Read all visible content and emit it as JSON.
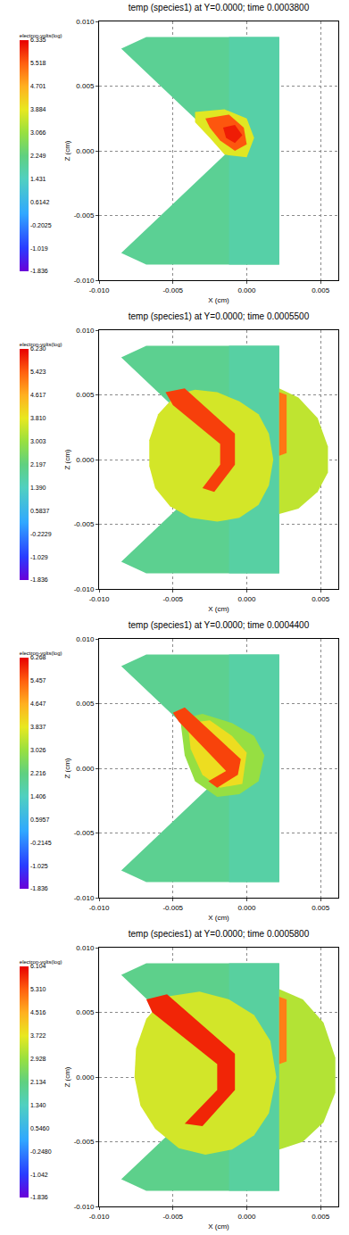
{
  "chart_data": [
    {
      "type": "polygon",
      "title": "temp (species1) at Y=0.0000; time 0.0003800",
      "xlabel": "X (cm)",
      "ylabel": "Z (cm)",
      "grid": true,
      "xlim": [
        -0.01,
        0.0062
      ],
      "ylim": [
        -0.01,
        0.01
      ],
      "xticks": [
        {
          "value": -0.01,
          "label": "-0.010"
        },
        {
          "value": -0.005,
          "label": "-0.005"
        },
        {
          "value": 0,
          "label": "0.000"
        },
        {
          "value": 0.005,
          "label": "0.005"
        }
      ],
      "yticks": [
        {
          "value": -0.01,
          "label": "-0.010"
        },
        {
          "value": -0.005,
          "label": "-0.005"
        },
        {
          "value": 0,
          "label": "0.000"
        },
        {
          "value": 0.005,
          "label": "0.005"
        },
        {
          "value": 0.01,
          "label": "0.010"
        }
      ],
      "colorbar": {
        "title": "electron-volts(log)",
        "range": [
          -1.836,
          6.335
        ],
        "ticks": [
          -1.836,
          -1.019,
          -0.2025,
          0.6142,
          1.431,
          2.249,
          3.066,
          3.884,
          4.701,
          5.518,
          6.335
        ]
      },
      "regions": [
        {
          "x": [
            -0.0068,
            0.0022,
            0.0022,
            -0.0068,
            -0.0085,
            -0.0012,
            -0.0085
          ],
          "y": [
            0.0088,
            0.0088,
            -0.0088,
            -0.0088,
            -0.0079,
            0.0,
            0.0079
          ],
          "value": 2.0
        },
        {
          "x": [
            -0.0012,
            0.0022,
            0.0022,
            -0.0012
          ],
          "y": [
            0.0088,
            0.0088,
            -0.0088,
            -0.0088
          ],
          "value": 1.75
        },
        {
          "x": [
            -0.0035,
            -0.0015,
            0.0,
            0.0005,
            0.0,
            -0.0015,
            -0.0025,
            -0.0035
          ],
          "y": [
            0.003,
            0.0032,
            0.0025,
            0.001,
            -0.0005,
            -0.0003,
            0.001,
            0.0022
          ],
          "value": 3.8
        },
        {
          "x": [
            -0.0028,
            -0.0012,
            -0.0002,
            0.0,
            -0.0008,
            -0.0018,
            -0.0025
          ],
          "y": [
            0.0025,
            0.0028,
            0.0018,
            0.0005,
            0.0,
            0.0008,
            0.0018
          ],
          "value": 5.6
        },
        {
          "x": [
            -0.0016,
            -0.0008,
            -0.0003,
            -0.0008,
            -0.0014
          ],
          "y": [
            0.0018,
            0.002,
            0.0012,
            0.0006,
            0.001
          ],
          "value": 6.1
        }
      ]
    },
    {
      "type": "polygon",
      "title": "temp (species1) at Y=0.0000; time 0.0005500",
      "xlabel": "X (cm)",
      "ylabel": "Z (cm)",
      "grid": true,
      "xlim": [
        -0.01,
        0.0062
      ],
      "ylim": [
        -0.01,
        0.01
      ],
      "xticks": [
        {
          "value": -0.01,
          "label": "-0.010"
        },
        {
          "value": -0.005,
          "label": "-0.005"
        },
        {
          "value": 0,
          "label": "0.000"
        },
        {
          "value": 0.005,
          "label": "0.005"
        }
      ],
      "yticks": [
        {
          "value": -0.01,
          "label": "-0.010"
        },
        {
          "value": -0.005,
          "label": "-0.005"
        },
        {
          "value": 0,
          "label": "0.000"
        },
        {
          "value": 0.005,
          "label": "0.005"
        },
        {
          "value": 0.01,
          "label": "0.010"
        }
      ],
      "colorbar": {
        "title": "electron-volts(log)",
        "range": [
          -1.836,
          6.23
        ],
        "ticks": [
          -1.836,
          -1.029,
          -0.2229,
          0.5837,
          {
            "value": 1.39,
            "label": "1.390"
          },
          2.197,
          3.003,
          {
            "value": 3.81,
            "label": "3.810"
          },
          4.617,
          5.423,
          {
            "value": 6.23,
            "label": "6.230"
          }
        ]
      },
      "regions": [
        {
          "x": [
            -0.0068,
            0.0022,
            0.0022,
            -0.0068,
            -0.0085,
            -0.0012,
            -0.0085
          ],
          "y": [
            0.0088,
            0.0088,
            -0.0088,
            -0.0088,
            -0.0079,
            0.0,
            0.0079
          ],
          "value": 2.0
        },
        {
          "x": [
            -0.0012,
            0.0022,
            0.0022,
            -0.0012
          ],
          "y": [
            0.0088,
            0.0088,
            -0.0088,
            -0.0088
          ],
          "value": 1.75
        },
        {
          "x": [
            -0.0048,
            -0.006,
            -0.0066,
            -0.0066,
            -0.0062,
            -0.0052,
            -0.0038,
            -0.002,
            -0.0005,
            0.0008,
            0.0015,
            0.0018,
            0.0015,
            0.0008,
            -0.0005,
            -0.002,
            -0.0035
          ],
          "y": [
            0.005,
            0.0035,
            0.0015,
            -0.0005,
            -0.0022,
            -0.0036,
            -0.0045,
            -0.0048,
            -0.0045,
            -0.0035,
            -0.002,
            0.0,
            0.002,
            0.0035,
            0.0045,
            0.0052,
            0.0054
          ],
          "value": 3.6
        },
        {
          "x": [
            0.0022,
            0.0035,
            0.0048,
            0.0055,
            0.0055,
            0.0048,
            0.0035,
            0.0022
          ],
          "y": [
            0.0055,
            0.0048,
            0.0032,
            0.001,
            -0.001,
            -0.0025,
            -0.0038,
            -0.0042
          ],
          "value": 3.4
        },
        {
          "x": [
            -0.0055,
            -0.0042,
            -0.0008,
            -0.0008,
            -0.0022,
            -0.003,
            -0.0018,
            -0.0018,
            -0.005
          ],
          "y": [
            0.0052,
            0.0055,
            0.002,
            -0.0004,
            -0.0025,
            -0.0022,
            -0.0004,
            0.0012,
            0.0042
          ],
          "value": 5.7
        },
        {
          "x": [
            0.0022,
            0.0027,
            0.0027,
            0.0022
          ],
          "y": [
            0.0052,
            0.005,
            0.0005,
            0.0003
          ],
          "value": 5.2
        }
      ]
    },
    {
      "type": "polygon",
      "title": "temp (species1) at Y=0.0000; time 0.0004400",
      "xlabel": "X (cm)",
      "ylabel": "Z (cm)",
      "grid": true,
      "xlim": [
        -0.01,
        0.0062
      ],
      "ylim": [
        -0.01,
        0.01
      ],
      "xticks": [
        {
          "value": -0.01,
          "label": "-0.010"
        },
        {
          "value": -0.005,
          "label": "-0.005"
        },
        {
          "value": 0,
          "label": "0.000"
        },
        {
          "value": 0.005,
          "label": "0.005"
        }
      ],
      "yticks": [
        {
          "value": -0.01,
          "label": "-0.010"
        },
        {
          "value": -0.005,
          "label": "-0.005"
        },
        {
          "value": 0,
          "label": "0.000"
        },
        {
          "value": 0.005,
          "label": "0.005"
        },
        {
          "value": 0.01,
          "label": "0.010"
        }
      ],
      "colorbar": {
        "title": "electron-volts(log)",
        "range": [
          -1.836,
          6.268
        ],
        "ticks": [
          -1.836,
          -1.025,
          -0.2145,
          0.5957,
          1.406,
          2.216,
          3.026,
          3.837,
          4.647,
          5.457,
          6.268
        ]
      },
      "regions": [
        {
          "x": [
            -0.0068,
            0.0022,
            0.0022,
            -0.0068,
            -0.0085,
            -0.0012,
            -0.0085
          ],
          "y": [
            0.0088,
            0.0088,
            -0.0088,
            -0.0088,
            -0.0079,
            0.0,
            0.0079
          ],
          "value": 2.0
        },
        {
          "x": [
            -0.0012,
            0.0022,
            0.0022,
            -0.0012
          ],
          "y": [
            0.0088,
            0.0088,
            -0.0088,
            -0.0088
          ],
          "value": 1.75
        },
        {
          "x": [
            -0.0045,
            -0.003,
            -0.001,
            0.0005,
            0.0012,
            0.0008,
            -0.0005,
            -0.002,
            -0.0035,
            -0.0042
          ],
          "y": [
            0.0038,
            0.0042,
            0.0035,
            0.0025,
            0.001,
            -0.001,
            -0.002,
            -0.0022,
            -0.001,
            0.001
          ],
          "value": 3.0
        },
        {
          "x": [
            -0.004,
            -0.0025,
            -0.001,
            0.0,
            -0.0003,
            -0.0018,
            -0.003,
            -0.0038
          ],
          "y": [
            0.0035,
            0.0037,
            0.0025,
            0.0012,
            -0.0012,
            -0.0015,
            -0.0005,
            0.0015
          ],
          "value": 4.0
        },
        {
          "x": [
            -0.005,
            -0.0042,
            -0.0004,
            -0.0006,
            -0.002,
            -0.0026,
            -0.0014,
            -0.0046
          ],
          "y": [
            0.0043,
            0.0047,
            0.0007,
            -0.0005,
            -0.0015,
            -0.001,
            -0.0002,
            0.0036
          ],
          "value": 5.7
        }
      ]
    },
    {
      "type": "polygon",
      "title": "temp (species1) at Y=0.0000; time 0.0005800",
      "xlabel": "X (cm)",
      "ylabel": "Z (cm)",
      "grid": true,
      "xlim": [
        -0.01,
        0.0062
      ],
      "ylim": [
        -0.01,
        0.01
      ],
      "xticks": [
        {
          "value": -0.01,
          "label": "-0.010"
        },
        {
          "value": -0.005,
          "label": "-0.005"
        },
        {
          "value": 0,
          "label": "0.000"
        },
        {
          "value": 0.005,
          "label": "0.005"
        }
      ],
      "yticks": [
        {
          "value": -0.01,
          "label": "-0.010"
        },
        {
          "value": -0.005,
          "label": "-0.005"
        },
        {
          "value": 0,
          "label": "0.000"
        },
        {
          "value": 0.005,
          "label": "0.005"
        },
        {
          "value": 0.01,
          "label": "0.010"
        }
      ],
      "colorbar": {
        "title": "electron-volts(log)",
        "range": [
          -1.836,
          6.104
        ],
        "ticks": [
          -1.836,
          -1.042,
          {
            "value": -0.248,
            "label": "-0.2480"
          },
          {
            "value": 0.546,
            "label": "0.5460"
          },
          {
            "value": 1.34,
            "label": "1.340"
          },
          2.134,
          2.928,
          3.722,
          4.516,
          {
            "value": 5.31,
            "label": "5.310"
          },
          6.104
        ]
      },
      "regions": [
        {
          "x": [
            -0.0068,
            0.0022,
            0.0022,
            -0.0068,
            -0.0085,
            -0.0012,
            -0.0085
          ],
          "y": [
            0.0088,
            0.0088,
            -0.0088,
            -0.0088,
            -0.0079,
            0.0,
            0.0079
          ],
          "value": 2.0
        },
        {
          "x": [
            -0.0012,
            0.0022,
            0.0022,
            -0.0012
          ],
          "y": [
            0.0088,
            0.0088,
            -0.0088,
            -0.0088
          ],
          "value": 1.75
        },
        {
          "x": [
            -0.0055,
            -0.0068,
            -0.0075,
            -0.0076,
            -0.0072,
            -0.0062,
            -0.0046,
            -0.0028,
            -0.001,
            0.0005,
            0.0015,
            0.002,
            0.0016,
            0.0005,
            -0.0012,
            -0.0032
          ],
          "y": [
            0.0062,
            0.0045,
            0.0022,
            0.0,
            -0.0022,
            -0.004,
            -0.0055,
            -0.006,
            -0.0056,
            -0.0045,
            -0.0028,
            0.0,
            0.0028,
            0.0048,
            0.006,
            0.0066
          ],
          "value": 3.5
        },
        {
          "x": [
            0.0022,
            0.0038,
            0.0052,
            0.006,
            0.006,
            0.0052,
            0.0038,
            0.0022
          ],
          "y": [
            0.0068,
            0.006,
            0.0042,
            0.0015,
            -0.0012,
            -0.0035,
            -0.005,
            -0.0056
          ],
          "value": 3.2
        },
        {
          "x": [
            -0.0068,
            -0.0054,
            -0.0008,
            -0.0008,
            -0.003,
            -0.0042,
            -0.002,
            -0.002,
            -0.0064
          ],
          "y": [
            0.006,
            0.0064,
            0.0018,
            -0.001,
            -0.0038,
            -0.0036,
            -0.001,
            0.001,
            0.005
          ],
          "value": 5.8
        },
        {
          "x": [
            0.0022,
            0.0027,
            0.0027,
            0.0022
          ],
          "y": [
            0.0062,
            0.006,
            0.0012,
            0.001
          ],
          "value": 5.0
        }
      ]
    }
  ]
}
